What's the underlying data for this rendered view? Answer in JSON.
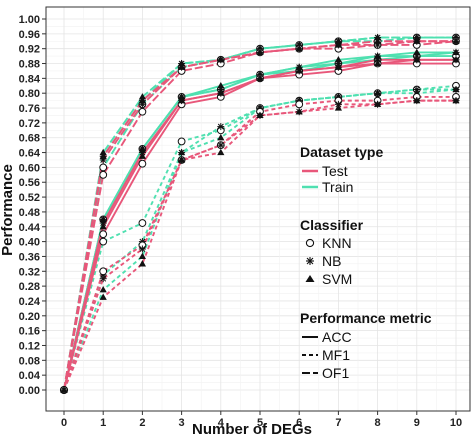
{
  "chart_data": {
    "type": "line",
    "xlabel": "Number of DEGs",
    "ylabel": "Performance",
    "x": [
      0,
      1,
      2,
      3,
      4,
      5,
      6,
      7,
      8,
      9,
      10
    ],
    "xlim": [
      0,
      10
    ],
    "ylim": [
      0,
      1.0
    ],
    "yticks": [
      "0.00",
      "0.04",
      "0.08",
      "0.12",
      "0.16",
      "0.20",
      "0.24",
      "0.28",
      "0.32",
      "0.36",
      "0.40",
      "0.44",
      "0.48",
      "0.52",
      "0.56",
      "0.60",
      "0.64",
      "0.68",
      "0.72",
      "0.76",
      "0.80",
      "0.84",
      "0.88",
      "0.92",
      "0.96",
      "1.00"
    ],
    "xticks": [
      "0",
      "1",
      "2",
      "3",
      "4",
      "5",
      "6",
      "7",
      "8",
      "9",
      "10"
    ],
    "grid": true,
    "colors": {
      "Test": "#e8577a",
      "Train": "#4fe0b0"
    },
    "legend": {
      "dataset_title": "Dataset type",
      "dataset_items": [
        "Test",
        "Train"
      ],
      "classifier_title": "Classifier",
      "classifier_items": [
        "KNN",
        "NB",
        "SVM"
      ],
      "metric_title": "Performance metric",
      "metric_items": [
        "ACC",
        "MF1",
        "OF1"
      ]
    },
    "series": [
      {
        "dataset": "Train",
        "classifier": "KNN",
        "metric": "ACC",
        "values": [
          0,
          0.46,
          0.65,
          0.79,
          0.81,
          0.85,
          0.86,
          0.88,
          0.89,
          0.9,
          0.9
        ]
      },
      {
        "dataset": "Train",
        "classifier": "NB",
        "metric": "ACC",
        "values": [
          0,
          0.46,
          0.65,
          0.79,
          0.81,
          0.85,
          0.87,
          0.88,
          0.9,
          0.9,
          0.91
        ]
      },
      {
        "dataset": "Train",
        "classifier": "SVM",
        "metric": "ACC",
        "values": [
          0,
          0.46,
          0.65,
          0.79,
          0.82,
          0.85,
          0.87,
          0.89,
          0.9,
          0.91,
          0.91
        ]
      },
      {
        "dataset": "Test",
        "classifier": "KNN",
        "metric": "ACC",
        "values": [
          0,
          0.42,
          0.61,
          0.77,
          0.79,
          0.84,
          0.85,
          0.86,
          0.88,
          0.88,
          0.88
        ]
      },
      {
        "dataset": "Test",
        "classifier": "NB",
        "metric": "ACC",
        "values": [
          0,
          0.45,
          0.64,
          0.78,
          0.8,
          0.84,
          0.86,
          0.87,
          0.89,
          0.89,
          0.89
        ]
      },
      {
        "dataset": "Test",
        "classifier": "SVM",
        "metric": "ACC",
        "values": [
          0,
          0.44,
          0.63,
          0.78,
          0.8,
          0.84,
          0.86,
          0.87,
          0.88,
          0.89,
          0.89
        ]
      },
      {
        "dataset": "Train",
        "classifier": "KNN",
        "metric": "MF1",
        "values": [
          0,
          0.4,
          0.45,
          0.67,
          0.7,
          0.76,
          0.78,
          0.79,
          0.8,
          0.81,
          0.82
        ]
      },
      {
        "dataset": "Train",
        "classifier": "NB",
        "metric": "MF1",
        "values": [
          0,
          0.31,
          0.4,
          0.64,
          0.71,
          0.76,
          0.78,
          0.79,
          0.8,
          0.81,
          0.81
        ]
      },
      {
        "dataset": "Train",
        "classifier": "SVM",
        "metric": "MF1",
        "values": [
          0,
          0.27,
          0.36,
          0.64,
          0.68,
          0.76,
          0.78,
          0.79,
          0.8,
          0.8,
          0.81
        ]
      },
      {
        "dataset": "Test",
        "classifier": "KNN",
        "metric": "MF1",
        "values": [
          0,
          0.32,
          0.39,
          0.62,
          0.66,
          0.75,
          0.77,
          0.78,
          0.78,
          0.79,
          0.79
        ]
      },
      {
        "dataset": "Test",
        "classifier": "NB",
        "metric": "MF1",
        "values": [
          0,
          0.3,
          0.38,
          0.62,
          0.66,
          0.74,
          0.75,
          0.77,
          0.77,
          0.78,
          0.78
        ]
      },
      {
        "dataset": "Test",
        "classifier": "SVM",
        "metric": "MF1",
        "values": [
          0,
          0.25,
          0.34,
          0.62,
          0.64,
          0.74,
          0.75,
          0.76,
          0.77,
          0.78,
          0.78
        ]
      },
      {
        "dataset": "Train",
        "classifier": "KNN",
        "metric": "OF1",
        "values": [
          0,
          0.6,
          0.77,
          0.87,
          0.89,
          0.92,
          0.93,
          0.94,
          0.94,
          0.95,
          0.95
        ]
      },
      {
        "dataset": "Train",
        "classifier": "NB",
        "metric": "OF1",
        "values": [
          0,
          0.63,
          0.78,
          0.88,
          0.89,
          0.92,
          0.93,
          0.94,
          0.95,
          0.95,
          0.95
        ]
      },
      {
        "dataset": "Train",
        "classifier": "SVM",
        "metric": "OF1",
        "values": [
          0,
          0.64,
          0.79,
          0.88,
          0.89,
          0.92,
          0.93,
          0.94,
          0.95,
          0.95,
          0.95
        ]
      },
      {
        "dataset": "Test",
        "classifier": "KNN",
        "metric": "OF1",
        "values": [
          0,
          0.58,
          0.75,
          0.86,
          0.88,
          0.91,
          0.92,
          0.92,
          0.93,
          0.93,
          0.94
        ]
      },
      {
        "dataset": "Test",
        "classifier": "NB",
        "metric": "OF1",
        "values": [
          0,
          0.62,
          0.77,
          0.87,
          0.89,
          0.91,
          0.92,
          0.93,
          0.93,
          0.94,
          0.94
        ]
      },
      {
        "dataset": "Test",
        "classifier": "SVM",
        "metric": "OF1",
        "values": [
          0,
          0.63,
          0.78,
          0.87,
          0.89,
          0.91,
          0.92,
          0.93,
          0.94,
          0.94,
          0.94
        ]
      }
    ]
  }
}
